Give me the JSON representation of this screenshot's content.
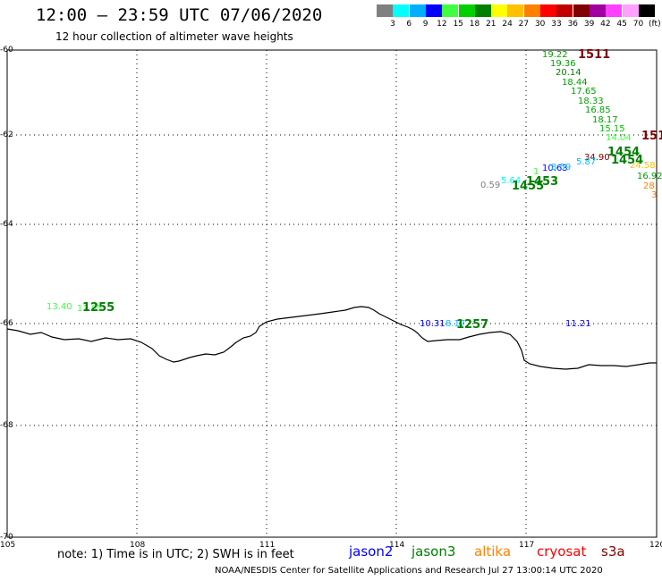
{
  "title": "12:00 – 23:59 UTC 07/06/2020",
  "subtitle": "12 hour collection of altimeter wave heights",
  "legend": {
    "unit": "(ft)",
    "colors": [
      "#808080",
      "#00ffff",
      "#00b0ff",
      "#0000ff",
      "#40ff40",
      "#00d000",
      "#008000",
      "#ffff00",
      "#ffc000",
      "#ff8000",
      "#ff0000",
      "#c00000",
      "#800000",
      "#a000a0",
      "#ff40ff",
      "#ffa0ff",
      "#000000"
    ],
    "labels": [
      "3",
      "6",
      "9",
      "12",
      "15",
      "18",
      "21",
      "24",
      "27",
      "30",
      "33",
      "36",
      "39",
      "42",
      "45",
      "70"
    ]
  },
  "map": {
    "lon_ticks": [
      "105",
      "108",
      "111",
      "114",
      "117",
      "120"
    ],
    "lat_ticks": [
      "-60",
      "-62",
      "-64",
      "-66",
      "-68",
      "-70"
    ]
  },
  "note": "note: 1) Time is in UTC; 2) SWH is in feet",
  "missions": [
    {
      "name": "jason2",
      "color": "#0000ff"
    },
    {
      "name": "jason3",
      "color": "#008000"
    },
    {
      "name": "altika",
      "color": "#ff8000"
    },
    {
      "name": "cryosat",
      "color": "#ff0000"
    },
    {
      "name": "s3a",
      "color": "#800000"
    }
  ],
  "credit": "NOAA/NESDIS Center for Satellite Applications and Research    Jul 27 13:00:14 UTC 2020",
  "observations": [
    {
      "text": "19.22",
      "color": "#00a000"
    },
    {
      "text": "19.36",
      "color": "#00a000"
    },
    {
      "text": "20.14",
      "color": "#008000"
    },
    {
      "text": "18.44",
      "color": "#00a000"
    },
    {
      "text": "17.65",
      "color": "#00a000"
    },
    {
      "text": "18.33",
      "color": "#00a000"
    },
    {
      "text": "16.85",
      "color": "#00a000"
    },
    {
      "text": "18.17",
      "color": "#00a000"
    },
    {
      "text": "15.15",
      "color": "#00c000"
    },
    {
      "text": "14.04",
      "color": "#40ff40"
    },
    {
      "text": "34.90",
      "color": "#800000"
    },
    {
      "text": "24.58",
      "color": "#ffc000"
    },
    {
      "text": "16.92",
      "color": "#00a000"
    },
    {
      "text": "28.",
      "color": "#ff8000"
    },
    {
      "text": "3",
      "color": "#ff8000"
    },
    {
      "text": "5.87",
      "color": "#00c0ff"
    },
    {
      "text": "10.63",
      "color": "#0000ff"
    },
    {
      "text": "8.59",
      "color": "#00c0ff"
    },
    {
      "text": "1",
      "color": "#40ff40"
    },
    {
      "text": "5.64",
      "color": "#00ffff"
    },
    {
      "text": "0.59",
      "color": "#808080"
    },
    {
      "text": "13.40",
      "color": "#40ff40"
    },
    {
      "text": "12.05",
      "color": "#40ff40"
    },
    {
      "text": "10.31",
      "color": "#0000ff"
    },
    {
      "text": "8.17",
      "color": "#00c0ff"
    },
    {
      "text": "11.21",
      "color": "#0000ff"
    }
  ],
  "pass_times": [
    {
      "text": "1511",
      "color": "#800000"
    },
    {
      "text": "151",
      "color": "#800000"
    },
    {
      "text": "1454",
      "color": "#008000"
    },
    {
      "text": "1454",
      "color": "#008000"
    },
    {
      "text": "1453",
      "color": "#008000"
    },
    {
      "text": "1455",
      "color": "#008000"
    },
    {
      "text": "1255",
      "color": "#008000"
    },
    {
      "text": "1257",
      "color": "#008000"
    }
  ]
}
